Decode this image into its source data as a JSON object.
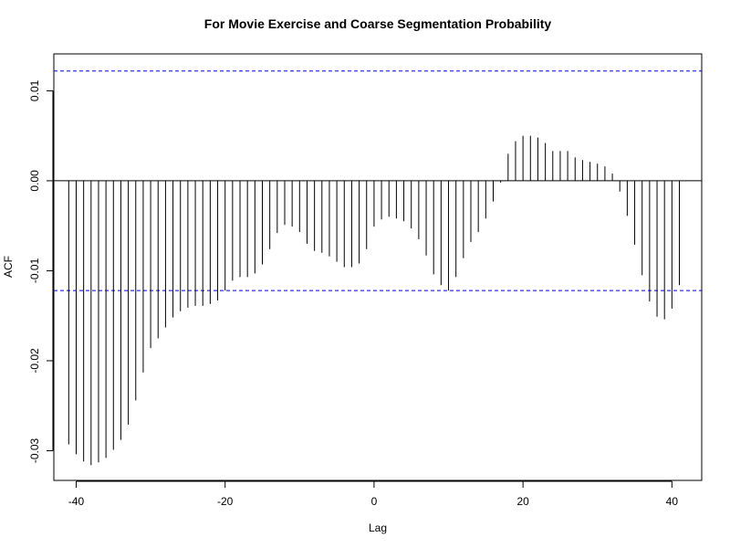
{
  "chart_data": {
    "type": "bar",
    "title": "For Movie Exercise and Coarse Segmentation Probability",
    "xlabel": "Lag",
    "ylabel": "ACF",
    "xlim": [
      -43,
      44
    ],
    "ylim": [
      -0.0333,
      0.0141
    ],
    "x_ticks": [
      -40,
      -20,
      0,
      20,
      40
    ],
    "y_ticks": [
      -0.03,
      -0.02,
      -0.01,
      0.0,
      0.01
    ],
    "x_tick_labels": [
      "-40",
      "-20",
      "0",
      "20",
      "40"
    ],
    "y_tick_labels": [
      "-0.03",
      "-0.02",
      "-0.01",
      "0.00",
      "0.01"
    ],
    "confidence_bound": 0.0122,
    "colors": {
      "bars": "#000000",
      "bounds": "#0000ff",
      "zero_line": "#000000",
      "frame": "#000000"
    },
    "x": [
      -41,
      -40,
      -39,
      -38,
      -37,
      -36,
      -35,
      -34,
      -33,
      -32,
      -31,
      -30,
      -29,
      -28,
      -27,
      -26,
      -25,
      -24,
      -23,
      -22,
      -21,
      -20,
      -19,
      -18,
      -17,
      -16,
      -15,
      -14,
      -13,
      -12,
      -11,
      -10,
      -9,
      -8,
      -7,
      -6,
      -5,
      -4,
      -3,
      -2,
      -1,
      0,
      1,
      2,
      3,
      4,
      5,
      6,
      7,
      8,
      9,
      10,
      11,
      12,
      13,
      14,
      15,
      16,
      17,
      18,
      19,
      20,
      21,
      22,
      23,
      24,
      25,
      26,
      27,
      28,
      29,
      30,
      31,
      32,
      33,
      34,
      35,
      36,
      37,
      38,
      39,
      40,
      41
    ],
    "values": [
      -0.0293,
      -0.0304,
      -0.0312,
      -0.0316,
      -0.0313,
      -0.0308,
      -0.0299,
      -0.0288,
      -0.0271,
      -0.0244,
      -0.0213,
      -0.0186,
      -0.0175,
      -0.0163,
      -0.0152,
      -0.0145,
      -0.0141,
      -0.0139,
      -0.0139,
      -0.0137,
      -0.0133,
      -0.0122,
      -0.0111,
      -0.0107,
      -0.0107,
      -0.0103,
      -0.0093,
      -0.0076,
      -0.0058,
      -0.0049,
      -0.0051,
      -0.0057,
      -0.007,
      -0.0078,
      -0.008,
      -0.0084,
      -0.009,
      -0.0096,
      -0.0096,
      -0.0092,
      -0.0076,
      -0.0051,
      -0.0043,
      -0.004,
      -0.0042,
      -0.0045,
      -0.0053,
      -0.0065,
      -0.0083,
      -0.0104,
      -0.0116,
      -0.0122,
      -0.0107,
      -0.0086,
      -0.0068,
      -0.0057,
      -0.0042,
      -0.0023,
      -0.0002,
      0.003,
      0.0044,
      0.005,
      0.005,
      0.0048,
      0.0042,
      0.0033,
      0.0033,
      0.0033,
      0.0026,
      0.0023,
      0.0021,
      0.0019,
      0.0016,
      0.0008,
      -0.0012,
      -0.0039,
      -0.0071,
      -0.0105,
      -0.0134,
      -0.0151,
      -0.0154,
      -0.0142,
      -0.0116
    ]
  }
}
